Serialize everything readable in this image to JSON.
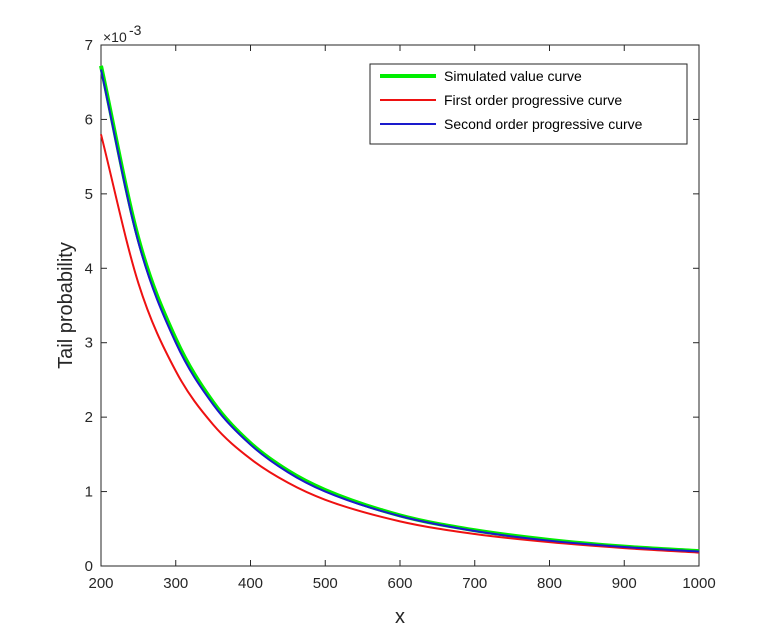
{
  "chart_data": {
    "type": "line",
    "xlabel": "x",
    "ylabel": "Tail probability",
    "xlim": [
      200,
      1000
    ],
    "ylim": [
      0,
      7
    ],
    "y_multiplier": "×10",
    "y_multiplier_exponent": "-3",
    "xticks": [
      "200",
      "300",
      "400",
      "500",
      "600",
      "700",
      "800",
      "900",
      "1000"
    ],
    "yticks": [
      "0",
      "1",
      "2",
      "3",
      "4",
      "5",
      "6",
      "7"
    ],
    "grid": false,
    "legend_position": "top-right",
    "x": [
      200,
      250,
      300,
      350,
      400,
      450,
      500,
      600,
      700,
      800,
      900,
      1000
    ],
    "series": [
      {
        "name": "Simulated value curve",
        "color": "#00ee00",
        "values": [
          6.72,
          4.4,
          3.05,
          2.2,
          1.65,
          1.28,
          1.02,
          0.68,
          0.48,
          0.35,
          0.26,
          0.2
        ]
      },
      {
        "name": "First order progressive curve",
        "color": "#ee1111",
        "values": [
          5.8,
          3.8,
          2.62,
          1.9,
          1.44,
          1.12,
          0.89,
          0.6,
          0.43,
          0.32,
          0.24,
          0.18
        ]
      },
      {
        "name": "Second order progressive curve",
        "color": "#1a1acc",
        "values": [
          6.67,
          4.35,
          3.0,
          2.17,
          1.63,
          1.26,
          1.0,
          0.67,
          0.47,
          0.34,
          0.255,
          0.195
        ]
      }
    ]
  }
}
